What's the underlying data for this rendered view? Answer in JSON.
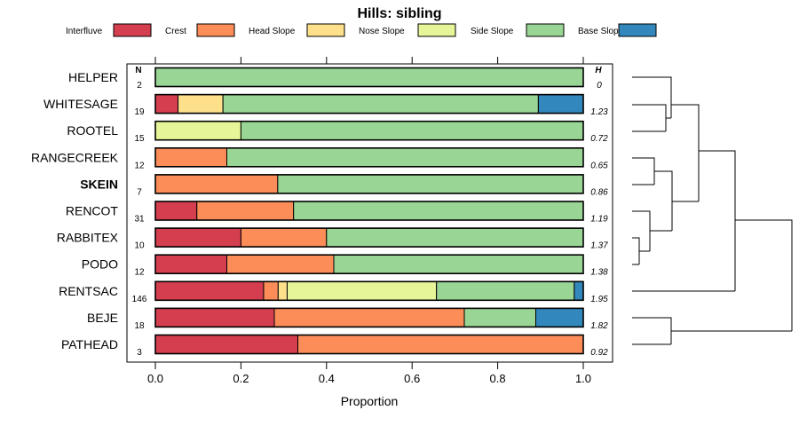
{
  "chart_data": {
    "type": "bar",
    "orientation": "horizontal",
    "stacked": true,
    "title": "Hills: sibling",
    "xlabel": "Proportion",
    "ylabel": "",
    "xlim": [
      0,
      1
    ],
    "x_ticks": [
      "0.0",
      "0.2",
      "0.4",
      "0.6",
      "0.8",
      "1.0"
    ],
    "n_header": "N",
    "h_header": "H",
    "legend": [
      {
        "name": "Interfluve",
        "color": "#D53E4F"
      },
      {
        "name": "Crest",
        "color": "#FC8D59"
      },
      {
        "name": "Head Slope",
        "color": "#FEE08B"
      },
      {
        "name": "Nose Slope",
        "color": "#E6F598"
      },
      {
        "name": "Side Slope",
        "color": "#99D594"
      },
      {
        "name": "Base Slope",
        "color": "#3288BD"
      }
    ],
    "categories": [
      "HELPER",
      "WHITESAGE",
      "ROOTEL",
      "RANGECREEK",
      "SKEIN",
      "RENCOT",
      "RABBITEX",
      "PODO",
      "RENTSAC",
      "BEJE",
      "PATHEAD"
    ],
    "highlight": "SKEIN",
    "n": [
      "2",
      "19",
      "15",
      "12",
      "7",
      "31",
      "10",
      "12",
      "146",
      "18",
      "3"
    ],
    "h": [
      "0",
      "1.23",
      "0.72",
      "0.65",
      "0.86",
      "1.19",
      "1.37",
      "1.38",
      "1.95",
      "1.82",
      "0.92"
    ],
    "series": [
      {
        "name": "Interfluve",
        "values": [
          0,
          0.053,
          0,
          0,
          0,
          0.097,
          0.2,
          0.167,
          0.253,
          0.278,
          0.333
        ]
      },
      {
        "name": "Crest",
        "values": [
          0,
          0,
          0,
          0.167,
          0.286,
          0.226,
          0.2,
          0.25,
          0.034,
          0.444,
          0.667
        ]
      },
      {
        "name": "Head Slope",
        "values": [
          0,
          0.105,
          0,
          0,
          0,
          0,
          0,
          0,
          0.021,
          0,
          0
        ]
      },
      {
        "name": "Nose Slope",
        "values": [
          0,
          0,
          0.2,
          0,
          0,
          0,
          0,
          0,
          0.349,
          0,
          0
        ]
      },
      {
        "name": "Side Slope",
        "values": [
          1,
          0.737,
          0.8,
          0.833,
          0.714,
          0.677,
          0.6,
          0.583,
          0.322,
          0.167,
          0
        ]
      },
      {
        "name": "Base Slope",
        "values": [
          0,
          0.105,
          0,
          0,
          0,
          0,
          0,
          0,
          0.021,
          0.111,
          0
        ]
      }
    ]
  }
}
